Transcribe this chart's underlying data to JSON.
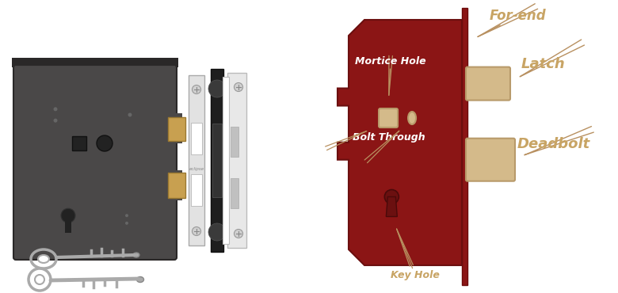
{
  "bg_color": "#ffffff",
  "lock_body_color": "#8B1515",
  "lock_body_border": "#6B0F0F",
  "bolt_color": "#D4BA8A",
  "bolt_border": "#B89A6A",
  "label_color": "#C8A464",
  "white_label_color": "#ffffff",
  "annotation_color": "#B89060",
  "door_color": "#8B1515",
  "for_end_label": "For-end",
  "latch_label": "Latch",
  "deadbolt_label": "Deadbolt",
  "mortice_hole_label": "Mortice Hole",
  "bolt_through_label": "Bolt Through",
  "key_hole_label": "Key Hole",
  "lock_gray": "#4A4848",
  "lock_border": "#2A2828",
  "faceplate_white": "#E2E2E2",
  "faceplate_border": "#AAAAAA",
  "strike_black": "#1E1E1E",
  "strike_border": "#111111",
  "outer_plate_white": "#E8E8E8",
  "outer_plate_border": "#BBBBBB",
  "brass_color": "#C8A050",
  "brass_border": "#9A7830",
  "key_color": "#AAAAAA",
  "key_border": "#888888"
}
